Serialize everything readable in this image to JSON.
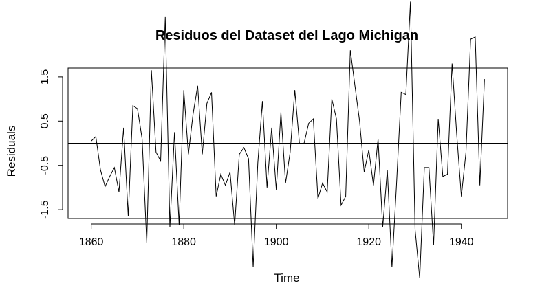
{
  "chart_data": {
    "type": "line",
    "title": "Residuos del Dataset del Lago Michigan",
    "xlabel": "Time",
    "ylabel": "Residuals",
    "xlim": [
      1855,
      1950
    ],
    "ylim": [
      -1.7,
      1.7
    ],
    "x_ticks": [
      1860,
      1880,
      1900,
      1920,
      1940
    ],
    "x_tick_labels": [
      "1860",
      "1880",
      "1900",
      "1920",
      "1940"
    ],
    "y_ticks": [
      -1.5,
      -0.5,
      0.5,
      1.5
    ],
    "y_tick_labels": [
      "-1.5",
      "-0.5",
      "0.5",
      "1.5"
    ],
    "reference_line": 0,
    "grid": false,
    "series": [
      {
        "x_start": 1860,
        "x_step": 1,
        "values": [
          0.05,
          0.15,
          -0.6,
          -0.98,
          -0.75,
          -0.55,
          -1.1,
          0.35,
          -1.65,
          0.85,
          0.78,
          0.1,
          -2.25,
          1.65,
          -0.2,
          -0.4,
          2.85,
          -1.9,
          0.25,
          -1.85,
          1.2,
          -0.25,
          0.65,
          1.3,
          -0.25,
          0.9,
          1.15,
          -1.2,
          -0.7,
          -0.95,
          -0.65,
          -1.85,
          -0.25,
          -0.1,
          -0.35,
          -2.8,
          -0.45,
          0.95,
          -1.0,
          0.35,
          -1.05,
          0.7,
          -0.9,
          -0.2,
          1.2,
          0.0,
          0.0,
          0.45,
          0.55,
          -1.25,
          -0.9,
          -1.1,
          1.0,
          0.55,
          -1.4,
          -1.2,
          2.1,
          1.3,
          0.5,
          -0.65,
          -0.15,
          -0.95,
          0.1,
          -1.9,
          -0.6,
          -2.8,
          -0.9,
          1.15,
          1.1,
          3.2,
          -1.95,
          -3.05,
          -0.55,
          -0.55,
          -2.3,
          0.55,
          -0.75,
          -0.7,
          1.8,
          0.2,
          -1.2,
          -0.2,
          2.35,
          2.4,
          -0.95,
          1.45
        ]
      }
    ]
  }
}
